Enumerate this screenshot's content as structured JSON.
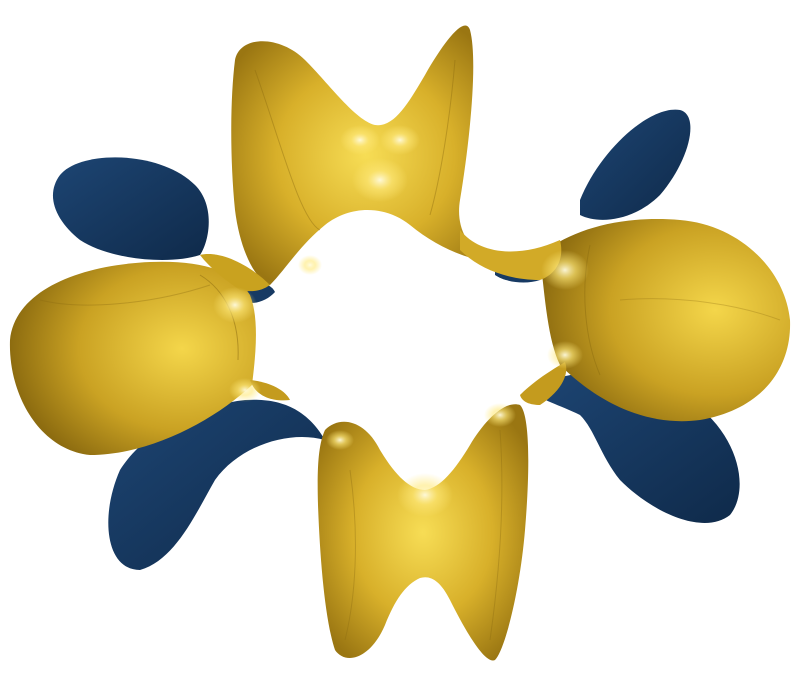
{
  "image": {
    "subject": "gold-and-navy-twisted-minimal-surface",
    "colors": {
      "background": "#ffffff",
      "gold_light": "#f4d64a",
      "gold_mid": "#c9a21f",
      "gold_dark": "#8a6a10",
      "navy": "#173a63",
      "navy_dark": "#0f2a4a",
      "highlight": "#fffbe0"
    }
  }
}
